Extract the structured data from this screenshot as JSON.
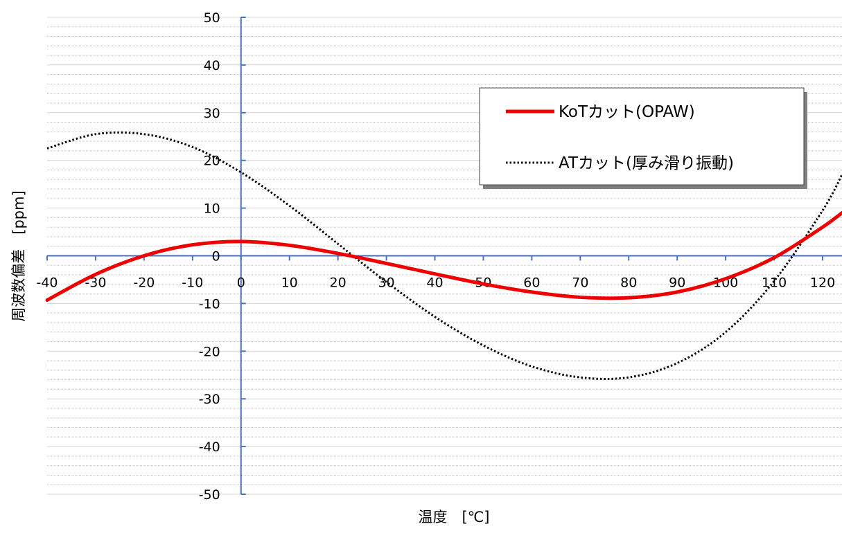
{
  "chart_data": {
    "type": "line",
    "title": "",
    "xlabel": "温度　[℃]",
    "ylabel": "周波数偏差　[ppm]",
    "xlim": [
      -40,
      124
    ],
    "ylim": [
      -50,
      50
    ],
    "x_ticks": [
      -40,
      -30,
      -20,
      -10,
      0,
      10,
      20,
      30,
      40,
      50,
      60,
      70,
      80,
      90,
      100,
      110,
      120
    ],
    "y_ticks": [
      50,
      40,
      30,
      20,
      10,
      0,
      -10,
      -20,
      -30,
      -40,
      -50
    ],
    "grid": true,
    "legend_position": "top-right",
    "colors": {
      "axis": "#4472c4",
      "grid": "#c8c8c8",
      "kot": "#ee0000",
      "at": "#000000"
    },
    "series": [
      {
        "name": "KoTカット(OPAW)",
        "style": "solid",
        "x": [
          -40,
          -30,
          -20,
          -10,
          0,
          10,
          20,
          30,
          40,
          50,
          60,
          70,
          80,
          90,
          100,
          110,
          120,
          124
        ],
        "y": [
          -9.3,
          -3.9,
          0.0,
          2.3,
          3.0,
          2.2,
          0.5,
          -1.6,
          -3.8,
          -5.9,
          -7.6,
          -8.7,
          -8.8,
          -7.6,
          -4.8,
          -0.4,
          6.0,
          9.0
        ]
      },
      {
        "name": "ATカット(厚み滑り振動)",
        "style": "dotted",
        "x": [
          -40,
          -30,
          -20,
          -10,
          0,
          10,
          20,
          30,
          40,
          50,
          60,
          70,
          80,
          90,
          100,
          110,
          120,
          124
        ],
        "y": [
          22.5,
          25.5,
          25.5,
          22.8,
          17.5,
          10.5,
          2.5,
          -5.5,
          -12.8,
          -18.8,
          -23.2,
          -25.5,
          -25.5,
          -22.5,
          -16.0,
          -5.3,
          9.5,
          17.0
        ]
      }
    ]
  }
}
